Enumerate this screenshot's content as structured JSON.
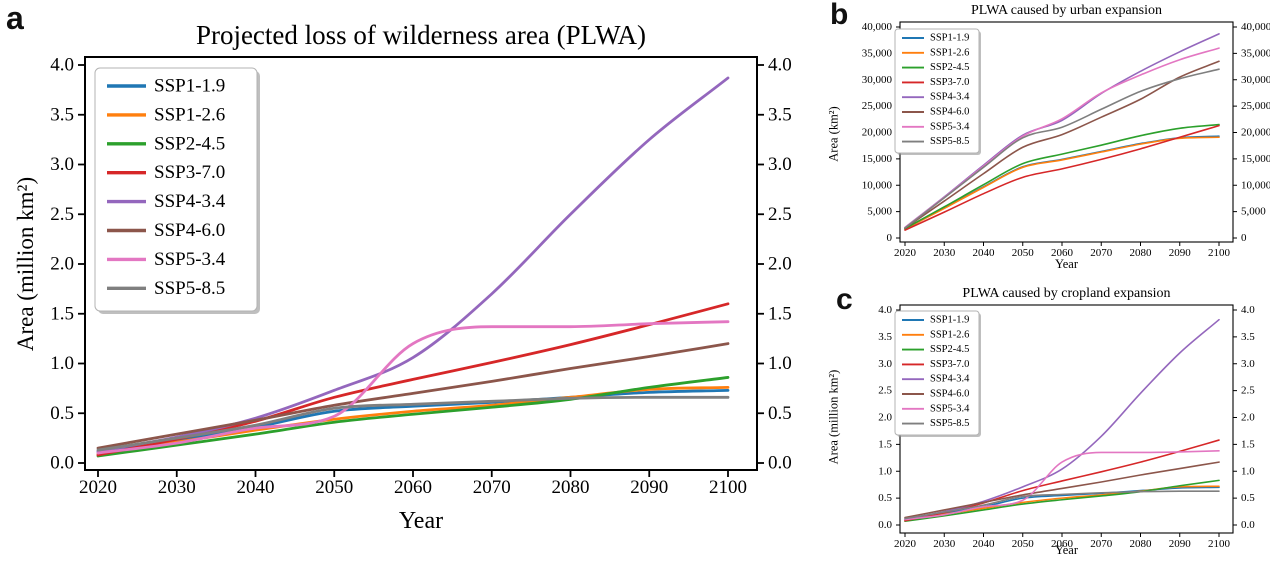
{
  "figure": {
    "panels": {
      "a": {
        "letter": "a"
      },
      "b": {
        "letter": "b"
      },
      "c": {
        "letter": "c"
      }
    },
    "accent_colors": {
      "blue": "#1f77b4",
      "orange": "#ff7f0e",
      "green": "#2ca02c",
      "red": "#d62728",
      "purple": "#9467bd",
      "brown": "#8c564b",
      "pink": "#e377c2",
      "gray": "#7f7f7f"
    }
  },
  "chart_data": [
    {
      "id": "a",
      "type": "line",
      "title": "Projected loss of wilderness area (PLWA)",
      "xlabel": "Year",
      "ylabel": "Area (million km²)",
      "grid": false,
      "legend_position": "upper-left",
      "x": [
        2020,
        2030,
        2040,
        2050,
        2060,
        2070,
        2080,
        2090,
        2100
      ],
      "xticks": [
        2020,
        2030,
        2040,
        2050,
        2060,
        2070,
        2080,
        2090,
        2100
      ],
      "yticks": [
        0.0,
        0.5,
        1.0,
        1.5,
        2.0,
        2.5,
        3.0,
        3.5,
        4.0
      ],
      "ytick_format": "fixed1",
      "ylim": [
        0.0,
        4.0
      ],
      "xlim": [
        2020,
        2100
      ],
      "series": [
        {
          "name": "SSP1-1.9",
          "color": "#1f77b4",
          "values": [
            0.11,
            0.23,
            0.36,
            0.52,
            0.57,
            0.61,
            0.66,
            0.71,
            0.73
          ]
        },
        {
          "name": "SSP1-2.6",
          "color": "#ff7f0e",
          "values": [
            0.09,
            0.21,
            0.33,
            0.44,
            0.52,
            0.58,
            0.66,
            0.74,
            0.76
          ]
        },
        {
          "name": "SSP2-4.5",
          "color": "#2ca02c",
          "values": [
            0.07,
            0.18,
            0.29,
            0.41,
            0.49,
            0.56,
            0.64,
            0.76,
            0.86
          ]
        },
        {
          "name": "SSP3-7.0",
          "color": "#d62728",
          "values": [
            0.08,
            0.24,
            0.42,
            0.66,
            0.84,
            1.01,
            1.19,
            1.39,
            1.6
          ]
        },
        {
          "name": "SSP4-3.4",
          "color": "#9467bd",
          "values": [
            0.12,
            0.26,
            0.45,
            0.73,
            1.06,
            1.7,
            2.5,
            3.25,
            3.87
          ]
        },
        {
          "name": "SSP4-6.0",
          "color": "#8c564b",
          "values": [
            0.15,
            0.29,
            0.43,
            0.58,
            0.7,
            0.82,
            0.95,
            1.07,
            1.2
          ]
        },
        {
          "name": "SSP5-3.4",
          "color": "#e377c2",
          "values": [
            0.1,
            0.2,
            0.35,
            0.47,
            1.2,
            1.37,
            1.37,
            1.4,
            1.42
          ]
        },
        {
          "name": "SSP5-8.5",
          "color": "#7f7f7f",
          "values": [
            0.13,
            0.25,
            0.38,
            0.55,
            0.59,
            0.62,
            0.65,
            0.66,
            0.66
          ]
        }
      ]
    },
    {
      "id": "b",
      "type": "line",
      "title": "PLWA caused by urban expansion",
      "xlabel": "Year",
      "ylabel": "Area (km²)",
      "grid": false,
      "legend_position": "upper-left",
      "x": [
        2020,
        2030,
        2040,
        2050,
        2060,
        2070,
        2080,
        2090,
        2100
      ],
      "xticks": [
        2020,
        2030,
        2040,
        2050,
        2060,
        2070,
        2080,
        2090,
        2100
      ],
      "yticks": [
        0,
        5000,
        10000,
        15000,
        20000,
        25000,
        30000,
        35000,
        40000
      ],
      "ytick_format": "comma",
      "ylim": [
        0,
        40000
      ],
      "xlim": [
        2020,
        2100
      ],
      "series": [
        {
          "name": "SSP1-1.9",
          "color": "#1f77b4",
          "values": [
            1700,
            5700,
            9700,
            13500,
            14900,
            16400,
            17900,
            19000,
            19300
          ]
        },
        {
          "name": "SSP1-2.6",
          "color": "#ff7f0e",
          "values": [
            1700,
            5600,
            9600,
            13400,
            14800,
            16300,
            17800,
            18900,
            19100
          ]
        },
        {
          "name": "SSP2-4.5",
          "color": "#2ca02c",
          "values": [
            1800,
            5900,
            10100,
            14100,
            15900,
            17600,
            19400,
            20800,
            21500
          ]
        },
        {
          "name": "SSP3-7.0",
          "color": "#d62728",
          "values": [
            1500,
            4900,
            8400,
            11500,
            13100,
            14900,
            16900,
            19100,
            21300
          ]
        },
        {
          "name": "SSP4-3.4",
          "color": "#9467bd",
          "values": [
            2000,
            7800,
            13800,
            19500,
            22300,
            27400,
            31600,
            35300,
            38700
          ]
        },
        {
          "name": "SSP4-6.0",
          "color": "#8c564b",
          "values": [
            1900,
            7000,
            12200,
            17200,
            19600,
            22900,
            26300,
            30500,
            33500
          ]
        },
        {
          "name": "SSP5-3.4",
          "color": "#e377c2",
          "values": [
            2000,
            7700,
            13600,
            19300,
            22600,
            27500,
            30900,
            33800,
            36000
          ]
        },
        {
          "name": "SSP5-8.5",
          "color": "#7f7f7f",
          "values": [
            1900,
            7600,
            13400,
            19000,
            21000,
            24400,
            27800,
            30200,
            32000
          ]
        }
      ]
    },
    {
      "id": "c",
      "type": "line",
      "title": "PLWA caused by cropland expansion",
      "xlabel": "Year",
      "ylabel": "Area (million km²)",
      "grid": false,
      "legend_position": "upper-left",
      "x": [
        2020,
        2030,
        2040,
        2050,
        2060,
        2070,
        2080,
        2090,
        2100
      ],
      "xticks": [
        2020,
        2030,
        2040,
        2050,
        2060,
        2070,
        2080,
        2090,
        2100
      ],
      "yticks": [
        0.0,
        0.5,
        1.0,
        1.5,
        2.0,
        2.5,
        3.0,
        3.5,
        4.0
      ],
      "ytick_format": "fixed1",
      "ylim": [
        0.0,
        4.0
      ],
      "xlim": [
        2020,
        2100
      ],
      "series": [
        {
          "name": "SSP1-1.9",
          "color": "#1f77b4",
          "values": [
            0.1,
            0.22,
            0.34,
            0.5,
            0.55,
            0.59,
            0.64,
            0.69,
            0.7
          ]
        },
        {
          "name": "SSP1-2.6",
          "color": "#ff7f0e",
          "values": [
            0.08,
            0.2,
            0.31,
            0.42,
            0.5,
            0.56,
            0.63,
            0.71,
            0.72
          ]
        },
        {
          "name": "SSP2-4.5",
          "color": "#2ca02c",
          "values": [
            0.07,
            0.17,
            0.28,
            0.39,
            0.47,
            0.54,
            0.62,
            0.73,
            0.83
          ]
        },
        {
          "name": "SSP3-7.0",
          "color": "#d62728",
          "values": [
            0.08,
            0.23,
            0.41,
            0.64,
            0.82,
            0.99,
            1.17,
            1.37,
            1.58
          ]
        },
        {
          "name": "SSP4-3.4",
          "color": "#9467bd",
          "values": [
            0.11,
            0.25,
            0.44,
            0.71,
            1.04,
            1.65,
            2.45,
            3.2,
            3.82
          ]
        },
        {
          "name": "SSP4-6.0",
          "color": "#8c564b",
          "values": [
            0.14,
            0.28,
            0.42,
            0.56,
            0.68,
            0.8,
            0.93,
            1.05,
            1.17
          ]
        },
        {
          "name": "SSP5-3.4",
          "color": "#e377c2",
          "values": [
            0.1,
            0.19,
            0.34,
            0.46,
            1.17,
            1.35,
            1.35,
            1.36,
            1.38
          ]
        },
        {
          "name": "SSP5-8.5",
          "color": "#7f7f7f",
          "values": [
            0.12,
            0.24,
            0.37,
            0.53,
            0.57,
            0.6,
            0.62,
            0.63,
            0.63
          ]
        }
      ]
    }
  ]
}
